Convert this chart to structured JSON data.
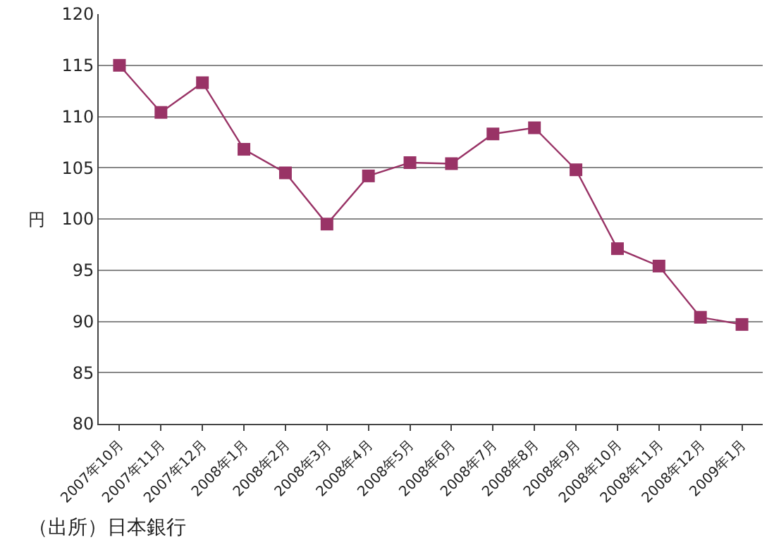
{
  "chart_data": {
    "type": "line",
    "ylabel": "円",
    "categories": [
      "2007年10月",
      "2007年11月",
      "2007年12月",
      "2008年1月",
      "2008年2月",
      "2008年3月",
      "2008年4月",
      "2008年5月",
      "2008年6月",
      "2008年7月",
      "2008年8月",
      "2008年9月",
      "2008年10月",
      "2008年11月",
      "2008年12月",
      "2009年1月"
    ],
    "series": [
      {
        "color": "#993366",
        "values": [
          115.0,
          110.4,
          113.3,
          106.8,
          104.5,
          99.5,
          104.2,
          105.5,
          105.4,
          108.3,
          108.9,
          104.8,
          97.1,
          95.4,
          90.4,
          89.7
        ]
      }
    ],
    "ylim": [
      80,
      120
    ],
    "yticks": [
      80,
      85,
      90,
      95,
      100,
      105,
      110,
      115,
      120
    ],
    "grid": "y",
    "marker": "square",
    "line_style": "solid",
    "legend": false,
    "annotations": [
      "（出所）日本銀行"
    ]
  }
}
